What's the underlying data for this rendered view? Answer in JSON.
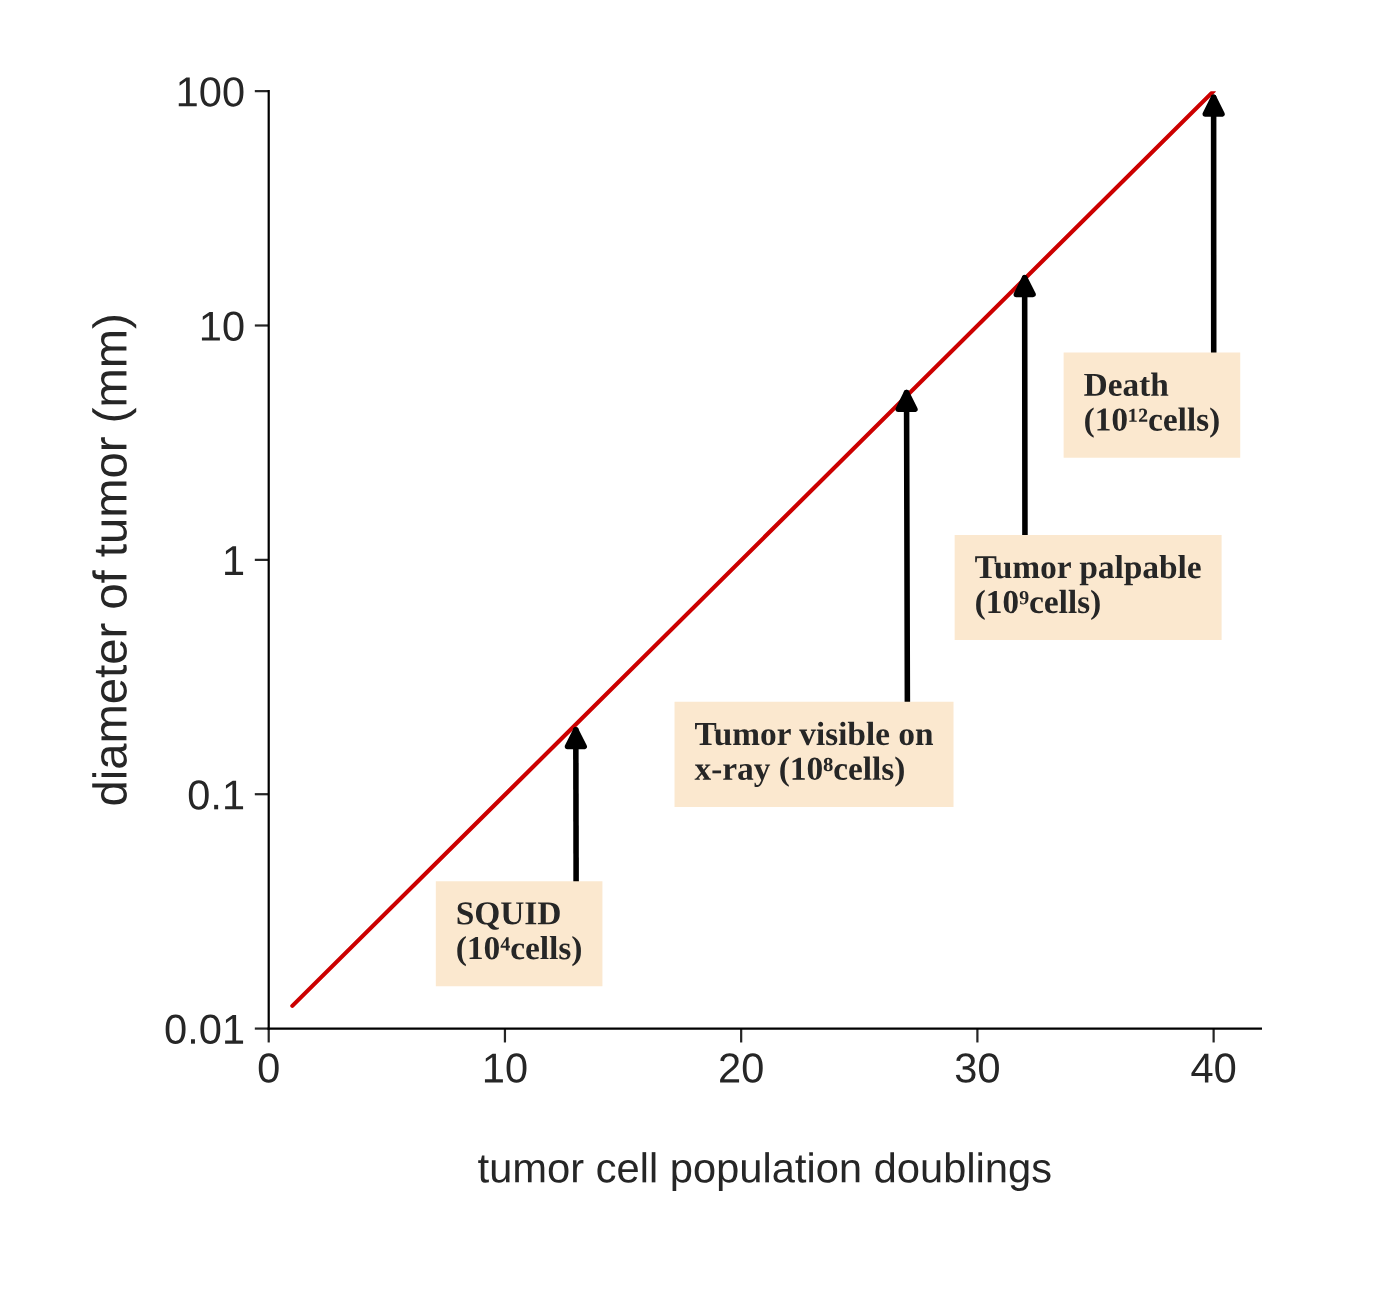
{
  "chart_data": {
    "type": "line",
    "xlabel": "tumor cell population doublings",
    "ylabel": "diameter of tumor (mm)",
    "series": [
      {
        "color": "#cc0000",
        "x": [
          1,
          40
        ],
        "values": [
          0.0125,
          100
        ]
      }
    ],
    "xlim": [
      0,
      42
    ],
    "xticks": [
      0,
      10,
      20,
      30,
      40
    ],
    "ylim": [
      0.01,
      100
    ],
    "yticks": [
      0.01,
      0.1,
      1,
      10,
      100
    ],
    "log": "y",
    "grid": false,
    "legend": false,
    "marker": "none",
    "line_style": "solid",
    "annotations": [
      {
        "text": "SQUID\n(10⁴cells)",
        "x": 13,
        "y": 0.2
      },
      {
        "text": "Tumor visible on\nx-ray (10⁸cells)",
        "x": 27,
        "y": 5.5
      },
      {
        "text": "Tumor palpable\n(10⁹cells)",
        "x": 32,
        "y": 17
      },
      {
        "text": "Death\n(10¹²cells)",
        "x": 40,
        "y": 100
      }
    ]
  }
}
